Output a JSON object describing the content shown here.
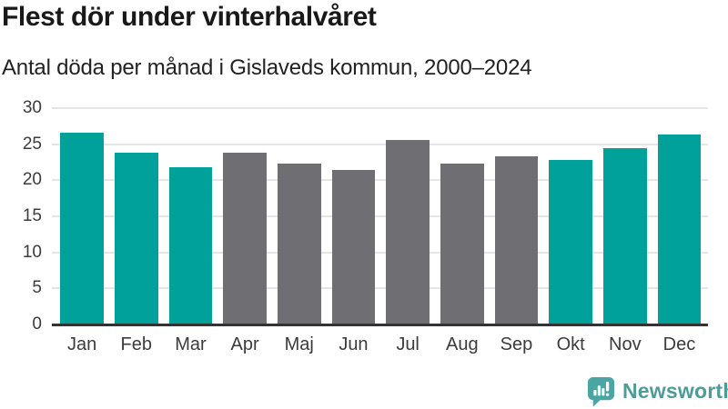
{
  "chart_data": {
    "type": "bar",
    "title": "Flest dör under vinterhalvåret",
    "subtitle": "Antal döda per månad i Gislaveds kommun, 2000–2024",
    "categories": [
      "Jan",
      "Feb",
      "Mar",
      "Apr",
      "Maj",
      "Jun",
      "Jul",
      "Aug",
      "Sep",
      "Okt",
      "Nov",
      "Dec"
    ],
    "values": [
      26.6,
      23.8,
      21.8,
      23.8,
      22.3,
      21.5,
      25.6,
      22.3,
      23.3,
      22.8,
      24.5,
      26.4
    ],
    "bar_colors": [
      "teal",
      "teal",
      "teal",
      "gray",
      "gray",
      "gray",
      "gray",
      "gray",
      "gray",
      "teal",
      "teal",
      "teal"
    ],
    "palette": {
      "teal": "#00a09b",
      "gray": "#6e6e73"
    },
    "xlabel": "",
    "ylabel": "",
    "ylim": [
      0,
      30
    ],
    "yticks": [
      0,
      5,
      10,
      15,
      20,
      25,
      30
    ],
    "grid": true,
    "grid_color": "#e5e5e5",
    "axis_color": "#333333",
    "legend": "none"
  },
  "branding": {
    "logo_text": "Newsworthy",
    "icon": "newsworthy-logo-icon",
    "icon_color": "#4ba5a2",
    "text_color": "#4e9b98"
  }
}
